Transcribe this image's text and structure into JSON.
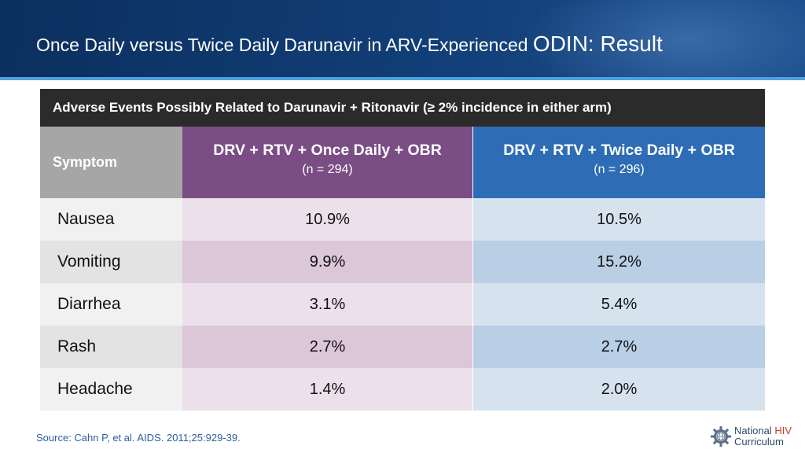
{
  "slide": {
    "title_prefix": "Once Daily versus Twice Daily Darunavir in ARV-Experienced",
    "title_suffix": "ODIN: Result"
  },
  "table": {
    "caption": "Adverse Events Possibly Related to Darunavir + Ritonavir (≥ 2% incidence in either arm)",
    "symptom_header": "Symptom",
    "arm1": {
      "label": "DRV + RTV + Once Daily + OBR",
      "n": "(n = 294)"
    },
    "arm2": {
      "label": "DRV + RTV + Twice Daily + OBR",
      "n": "(n = 296)"
    },
    "rows": [
      {
        "symptom": "Nausea",
        "arm1": "10.9%",
        "arm2": "10.5%"
      },
      {
        "symptom": "Vomiting",
        "arm1": "9.9%",
        "arm2": "15.2%"
      },
      {
        "symptom": "Diarrhea",
        "arm1": "3.1%",
        "arm2": "5.4%"
      },
      {
        "symptom": "Rash",
        "arm1": "2.7%",
        "arm2": "2.7%"
      },
      {
        "symptom": "Headache",
        "arm1": "1.4%",
        "arm2": "2.0%"
      }
    ]
  },
  "footer": {
    "source": "Source: Cahn P, et al. AIDS. 2011;25:929-39.",
    "logo_line1_a": "National ",
    "logo_line1_b": "HIV",
    "logo_line2": "Curriculum"
  },
  "colors": {
    "header_bg": "#123f78",
    "accent_line": "#4ea3df",
    "arm1_header": "#7a4d85",
    "arm2_header": "#2e6db5",
    "caption_bg": "#2b2b2b",
    "symptom_header": "#a6a6a6"
  },
  "icons": {
    "logo": "gear-globe-icon"
  }
}
